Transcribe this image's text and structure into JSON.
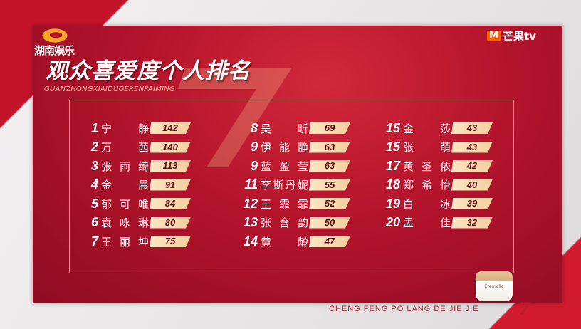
{
  "header": {
    "logo_text": "湖南娱乐",
    "title": "观众喜爱度个人排名",
    "subtitle": "GUANZHONGXIAIDUGERENPAIMING",
    "mango_logo": "M",
    "mango_text": "芒果tv"
  },
  "columns": [
    [
      {
        "rank": "1",
        "name": "宁 静",
        "score": "142"
      },
      {
        "rank": "2",
        "name": "万 茜",
        "score": "140"
      },
      {
        "rank": "3",
        "name": "张雨绮",
        "score": "113"
      },
      {
        "rank": "4",
        "name": "金 晨",
        "score": "91"
      },
      {
        "rank": "5",
        "name": "郁可唯",
        "score": "84"
      },
      {
        "rank": "6",
        "name": "袁咏琳",
        "score": "80"
      },
      {
        "rank": "7",
        "name": "王丽坤",
        "score": "75"
      }
    ],
    [
      {
        "rank": "8",
        "name": "吴 昕",
        "score": "69"
      },
      {
        "rank": "9",
        "name": "伊能静",
        "score": "63"
      },
      {
        "rank": "9",
        "name": "蓝盈莹",
        "score": "63"
      },
      {
        "rank": "11",
        "name": "李斯丹妮",
        "score": "55"
      },
      {
        "rank": "12",
        "name": "王霏霏",
        "score": "52"
      },
      {
        "rank": "13",
        "name": "张含韵",
        "score": "50"
      },
      {
        "rank": "14",
        "name": "黄 龄",
        "score": "47"
      }
    ],
    [
      {
        "rank": "15",
        "name": "金 莎",
        "score": "43"
      },
      {
        "rank": "15",
        "name": "张 萌",
        "score": "43"
      },
      {
        "rank": "17",
        "name": "黄圣依",
        "score": "42"
      },
      {
        "rank": "18",
        "name": "郑希怡",
        "score": "40"
      },
      {
        "rank": "19",
        "name": "白 冰",
        "score": "39"
      },
      {
        "rank": "20",
        "name": "孟 佳",
        "score": "32"
      }
    ]
  ],
  "footer": {
    "text": "CHENG FENG PO LANG DE JIE JIE",
    "logo": "7"
  },
  "product": {
    "label": "Eternelle"
  },
  "colors": {
    "panel": "#b3142c",
    "bar": "#f3cf9e",
    "score_text": "#5a1010",
    "footer": "#b5202f"
  }
}
